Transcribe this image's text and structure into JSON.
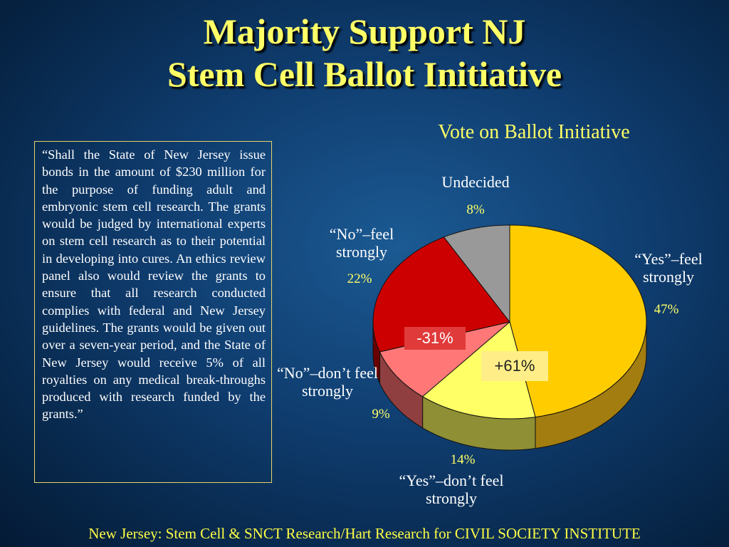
{
  "title_line1": "Majority Support NJ",
  "title_line2": "Stem Cell Ballot Initiative",
  "quote": "“Shall the State of New Jersey issue bonds in the amount of $230 million for the purpose of funding adult and embryonic stem cell research. The grants would be judged by international experts on stem cell research as to their potential in developing into cures. An ethics review panel also would review the grants to ensure that all research conducted complies with federal and New Jersey guidelines. The grants would be given out over a seven-year period, and the State of New Jersey would receive 5%  of all royalties on any medical break-throughs produced with research funded by the grants.”",
  "source": "New Jersey: Stem Cell & SNCT Research/Hart Research for CIVIL SOCIETY INSTITUTE",
  "net_no": "-31%",
  "net_yes": "+61%",
  "chart_data": {
    "type": "pie",
    "title": "Vote on Ballot Initiative",
    "slices": [
      {
        "label": "“Yes”–feel strongly",
        "value": 47,
        "value_label": "47%",
        "color": "#ffcc00",
        "side_color": "#a37d10"
      },
      {
        "label": "“Yes”–don’t feel strongly",
        "value": 14,
        "value_label": "14%",
        "color": "#ffff66",
        "side_color": "#8f8f35"
      },
      {
        "label": "“No”–don’t feel strongly",
        "value": 9,
        "value_label": "9%",
        "color": "#ff7777",
        "side_color": "#8f3f3f"
      },
      {
        "label": "“No”–feel strongly",
        "value": 22,
        "value_label": "22%",
        "color": "#cc0000",
        "side_color": "#6a0000"
      },
      {
        "label": "Undecided",
        "value": 8,
        "value_label": "8%",
        "color": "#999999",
        "side_color": "#555555"
      }
    ],
    "legend": "none",
    "annotations": [
      "-31%",
      "+61%"
    ]
  }
}
